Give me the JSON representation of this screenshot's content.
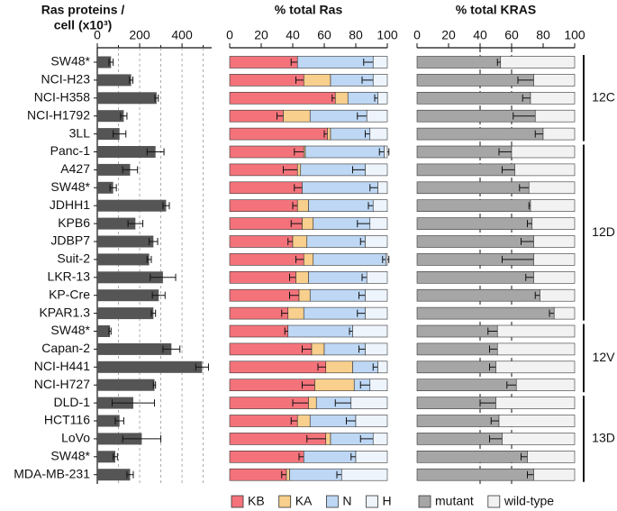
{
  "chart_data": [
    {
      "type": "bar",
      "orientation": "horizontal",
      "title": [
        "Ras proteins /",
        "cell (x10³)"
      ],
      "categories": [
        "SW48*",
        "NCI-H23",
        "NCI-H358",
        "NCI-H1792",
        "3LL",
        "Panc-1",
        "A427",
        "SW48*",
        "JDHH1",
        "KPB6",
        "JDBP7",
        "Suit-2",
        "LKR-13",
        "KP-Cre",
        "KPAR1.3",
        "SW48*",
        "Capan-2",
        "NCI-H441",
        "NCI-H727",
        "DLD-1",
        "HCT116",
        "LoVo",
        "SW48*",
        "MDA-MB-231"
      ],
      "groups": [
        {
          "label": "12C",
          "count": 5
        },
        {
          "label": "12D",
          "count": 10
        },
        {
          "label": "12V",
          "count": 4
        },
        {
          "label": "13D",
          "count": 5
        }
      ],
      "values": [
        65,
        160,
        280,
        125,
        105,
        275,
        155,
        75,
        325,
        180,
        265,
        245,
        310,
        290,
        265,
        60,
        350,
        495,
        270,
        170,
        105,
        210,
        85,
        155
      ],
      "errors": [
        10,
        8,
        8,
        15,
        30,
        40,
        35,
        15,
        15,
        35,
        20,
        10,
        60,
        30,
        10,
        5,
        40,
        30,
        5,
        100,
        20,
        90,
        10,
        15
      ],
      "color": "#555555",
      "xlim": [
        0,
        540
      ],
      "xticks": [
        0,
        200,
        400
      ],
      "minor_xticks": [
        100,
        300,
        500
      ],
      "grid": true
    },
    {
      "type": "stacked_bar",
      "orientation": "horizontal",
      "title": "% total Ras",
      "xlim": [
        0,
        100
      ],
      "xticks": [
        0,
        20,
        40,
        60,
        80,
        100
      ],
      "series": [
        {
          "name": "KB",
          "color": "#f4737b",
          "values": [
            43,
            47,
            67,
            34,
            62,
            47,
            43,
            46,
            43,
            46,
            40,
            47,
            42,
            44,
            37,
            37,
            52,
            61,
            54,
            50,
            43,
            61,
            47,
            36
          ],
          "errors": [
            4,
            5,
            2,
            4,
            2,
            6,
            9,
            5,
            3,
            7,
            3,
            5,
            4,
            6,
            4,
            2,
            6,
            5,
            8,
            10,
            4,
            12,
            3,
            3
          ]
        },
        {
          "name": "KA",
          "color": "#f8cf8c",
          "values": [
            0,
            17,
            8,
            17,
            2,
            1,
            2,
            0,
            7,
            7,
            9,
            6,
            8,
            7,
            10,
            0,
            8,
            17,
            25,
            5,
            8,
            3,
            0,
            2
          ]
        },
        {
          "name": "N",
          "color": "#bdd7f4",
          "values": [
            48,
            27,
            19,
            36,
            25,
            50,
            41,
            48,
            41,
            36,
            37,
            46,
            37,
            35,
            39,
            41,
            26,
            16,
            10,
            22,
            29,
            27,
            33,
            33
          ],
          "errors": [
            6,
            7,
            2,
            6,
            3,
            3,
            8,
            5,
            3,
            8,
            3,
            2,
            3,
            4,
            5,
            2,
            4,
            3,
            6,
            10,
            6,
            8,
            3,
            3
          ]
        },
        {
          "name": "H",
          "color": "#eef4fc",
          "values": [
            9,
            9,
            6,
            13,
            11,
            2,
            14,
            6,
            9,
            11,
            14,
            1,
            13,
            14,
            14,
            22,
            14,
            6,
            11,
            23,
            20,
            9,
            20,
            29
          ]
        }
      ]
    },
    {
      "type": "stacked_bar",
      "orientation": "horizontal",
      "title": "% total KRAS",
      "xlim": [
        0,
        100
      ],
      "xticks": [
        0,
        20,
        40,
        60,
        80,
        100
      ],
      "reference_lines": [
        40,
        60
      ],
      "series": [
        {
          "name": "mutant",
          "color": "#a6a6a6",
          "values": [
            53,
            74,
            72,
            75,
            80,
            60,
            62,
            71,
            72,
            73,
            74,
            74,
            74,
            78,
            87,
            51,
            51,
            50,
            63,
            50,
            52,
            54,
            70,
            74
          ],
          "errors": [
            2,
            10,
            5,
            14,
            5,
            8,
            8,
            6,
            1,
            3,
            8,
            20,
            5,
            3,
            3,
            6,
            5,
            4,
            6,
            10,
            5,
            8,
            4,
            4
          ]
        },
        {
          "name": "wild-type",
          "color": "#f2f2f2",
          "values": [
            47,
            26,
            28,
            25,
            20,
            40,
            38,
            29,
            28,
            27,
            26,
            26,
            26,
            22,
            13,
            49,
            49,
            50,
            37,
            50,
            48,
            46,
            30,
            26
          ]
        }
      ]
    }
  ]
}
